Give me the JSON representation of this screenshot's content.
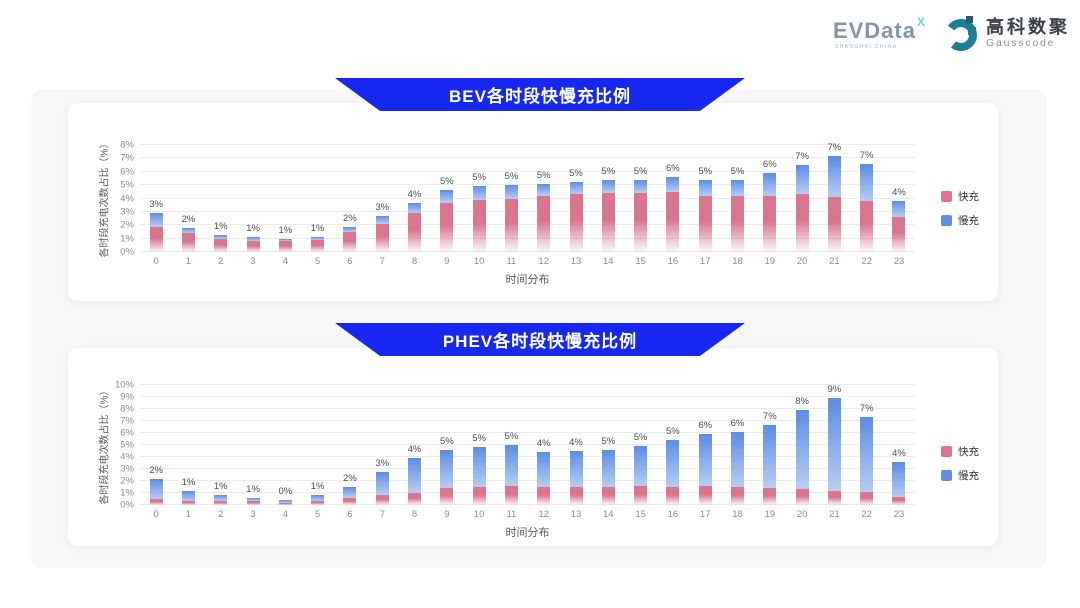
{
  "header": {
    "evdata": {
      "name": "EVData",
      "sup": "X",
      "sub": "SHANGHAI CHINA"
    },
    "gausscode": {
      "cn": "高科数聚",
      "en": "Gausscode"
    }
  },
  "colors": {
    "banner_blue": "#1628F2",
    "fast_pink": "#D9758F",
    "slow_blue": "#5B8DE5",
    "panel_gray": "#F7F7F8"
  },
  "chart_data": [
    {
      "type": "bar",
      "stacked": true,
      "title": "BEV各时段快慢充比例",
      "xlabel": "时间分布",
      "ylabel": "各时段充电次数占比（%）",
      "categories": [
        "0",
        "1",
        "2",
        "3",
        "4",
        "5",
        "6",
        "7",
        "8",
        "9",
        "10",
        "11",
        "12",
        "13",
        "14",
        "15",
        "16",
        "17",
        "18",
        "19",
        "20",
        "21",
        "22",
        "23"
      ],
      "series": [
        {
          "name": "快充",
          "color": "#D9758F",
          "values": [
            1.9,
            1.4,
            0.95,
            0.8,
            0.8,
            0.9,
            1.5,
            2.1,
            2.9,
            3.7,
            3.9,
            4.0,
            4.2,
            4.3,
            4.4,
            4.4,
            4.5,
            4.2,
            4.2,
            4.2,
            4.3,
            4.1,
            3.8,
            2.6
          ]
        },
        {
          "name": "慢充",
          "color": "#5B8DE5",
          "values": [
            1.0,
            0.4,
            0.35,
            0.3,
            0.15,
            0.25,
            0.4,
            0.6,
            0.8,
            0.9,
            1.0,
            1.0,
            0.9,
            0.9,
            1.0,
            1.0,
            1.1,
            1.2,
            1.2,
            1.7,
            2.2,
            3.1,
            2.8,
            1.2
          ]
        }
      ],
      "total_labels": [
        "3%",
        "2%",
        "1%",
        "1%",
        "1%",
        "1%",
        "2%",
        "3%",
        "4%",
        "5%",
        "5%",
        "5%",
        "5%",
        "5%",
        "5%",
        "5%",
        "6%",
        "5%",
        "5%",
        "6%",
        "7%",
        "7%",
        "7%",
        "4%"
      ],
      "ylim": [
        0,
        8
      ],
      "ytick_step": 1,
      "ytick_suffix": "%",
      "grid": true,
      "legend_position": "right"
    },
    {
      "type": "bar",
      "stacked": true,
      "title": "PHEV各时段快慢充比例",
      "xlabel": "时间分布",
      "ylabel": "各时段充电次数占比（%）",
      "categories": [
        "0",
        "1",
        "2",
        "3",
        "4",
        "5",
        "6",
        "7",
        "8",
        "9",
        "10",
        "11",
        "12",
        "13",
        "14",
        "15",
        "16",
        "17",
        "18",
        "19",
        "20",
        "21",
        "22",
        "23"
      ],
      "series": [
        {
          "name": "快充",
          "color": "#D9758F",
          "values": [
            0.5,
            0.35,
            0.3,
            0.3,
            0.2,
            0.3,
            0.6,
            0.8,
            1.0,
            1.4,
            1.5,
            1.6,
            1.5,
            1.5,
            1.5,
            1.6,
            1.5,
            1.6,
            1.5,
            1.4,
            1.3,
            1.2,
            1.1,
            0.7
          ]
        },
        {
          "name": "慢充",
          "color": "#5B8DE5",
          "values": [
            1.7,
            0.85,
            0.5,
            0.3,
            0.25,
            0.55,
            0.9,
            1.95,
            2.9,
            3.2,
            3.3,
            3.4,
            2.9,
            3.0,
            3.1,
            3.3,
            3.9,
            4.3,
            4.6,
            5.3,
            6.6,
            7.7,
            6.2,
            2.9
          ]
        }
      ],
      "total_labels": [
        "2%",
        "1%",
        "1%",
        "1%",
        "0%",
        "1%",
        "2%",
        "3%",
        "4%",
        "5%",
        "5%",
        "5%",
        "4%",
        "4%",
        "5%",
        "5%",
        "5%",
        "6%",
        "6%",
        "7%",
        "8%",
        "9%",
        "7%",
        "4%"
      ],
      "ylim": [
        0,
        10
      ],
      "ytick_step": 1,
      "ytick_suffix": "%",
      "grid": true,
      "legend_position": "right"
    }
  ]
}
